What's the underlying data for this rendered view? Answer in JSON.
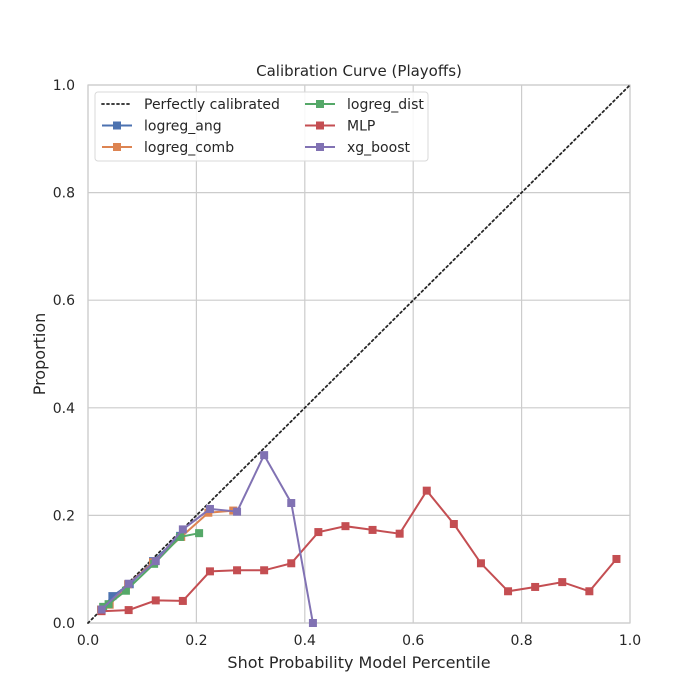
{
  "chart_data": {
    "type": "line",
    "title": "Calibration Curve (Playoffs)",
    "xlabel": "Shot Probability Model Percentile",
    "ylabel": "Proportion",
    "xlim": [
      0.0,
      1.0
    ],
    "ylim": [
      0.0,
      1.0
    ],
    "xticks": [
      "0.0",
      "0.2",
      "0.4",
      "0.6",
      "0.8",
      "1.0"
    ],
    "yticks": [
      "0.0",
      "0.2",
      "0.4",
      "0.6",
      "0.8",
      "1.0"
    ],
    "grid": true,
    "legend_position": "top-left",
    "reference": {
      "name": "Perfectly calibrated",
      "x": [
        0,
        1
      ],
      "y": [
        0,
        1
      ],
      "color": "#262626",
      "style": "dotted"
    },
    "series": [
      {
        "name": "logreg_ang",
        "color": "#4c72b0",
        "x": [
          0.025,
          0.045,
          0.077,
          0.12,
          0.17
        ],
        "y": [
          0.025,
          0.05,
          0.072,
          0.115,
          0.162
        ]
      },
      {
        "name": "logreg_comb",
        "color": "#dd8452",
        "x": [
          0.024,
          0.04,
          0.074,
          0.12,
          0.172,
          0.222,
          0.268
        ],
        "y": [
          0.025,
          0.034,
          0.072,
          0.113,
          0.16,
          0.205,
          0.209
        ]
      },
      {
        "name": "logreg_dist",
        "color": "#55a868",
        "x": [
          0.028,
          0.038,
          0.07,
          0.122,
          0.17,
          0.205
        ],
        "y": [
          0.03,
          0.035,
          0.06,
          0.11,
          0.16,
          0.167
        ]
      },
      {
        "name": "MLP",
        "color": "#c44e52",
        "x": [
          0.025,
          0.075,
          0.125,
          0.175,
          0.225,
          0.275,
          0.325,
          0.375,
          0.425,
          0.475,
          0.525,
          0.575,
          0.625,
          0.675,
          0.725,
          0.775,
          0.825,
          0.875,
          0.925,
          0.975
        ],
        "y": [
          0.022,
          0.024,
          0.042,
          0.041,
          0.096,
          0.098,
          0.098,
          0.111,
          0.169,
          0.18,
          0.173,
          0.166,
          0.246,
          0.184,
          0.111,
          0.059,
          0.067,
          0.076,
          0.059,
          0.119
        ]
      },
      {
        "name": "xg_boost",
        "color": "#8172b3",
        "x": [
          0.025,
          0.075,
          0.125,
          0.175,
          0.225,
          0.275,
          0.325,
          0.375,
          0.415
        ],
        "y": [
          0.025,
          0.073,
          0.115,
          0.174,
          0.212,
          0.207,
          0.312,
          0.223,
          0.0
        ]
      }
    ]
  }
}
